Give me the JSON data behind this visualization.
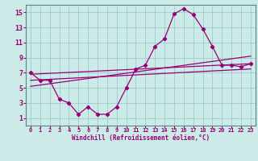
{
  "xlabel": "Windchill (Refroidissement éolien,°C)",
  "bg_color": "#cceae7",
  "line_color": "#990077",
  "grid_color": "#99cccc",
  "xlim": [
    -0.5,
    23.5
  ],
  "ylim": [
    0,
    16
  ],
  "xticks": [
    0,
    1,
    2,
    3,
    4,
    5,
    6,
    7,
    8,
    9,
    10,
    11,
    12,
    13,
    14,
    15,
    16,
    17,
    18,
    19,
    20,
    21,
    22,
    23
  ],
  "yticks": [
    1,
    3,
    5,
    7,
    9,
    11,
    13,
    15
  ],
  "series1_x": [
    0,
    1,
    2,
    3,
    4,
    5,
    6,
    7,
    8,
    9,
    10,
    11,
    12,
    13,
    14,
    15,
    16,
    17,
    18,
    19,
    20,
    21,
    22,
    23
  ],
  "series1_y": [
    7.0,
    6.0,
    6.0,
    3.5,
    3.0,
    1.5,
    2.5,
    1.5,
    1.5,
    2.5,
    5.0,
    7.5,
    8.0,
    10.5,
    11.5,
    14.8,
    15.5,
    14.7,
    12.8,
    10.5,
    8.0,
    8.0,
    7.8,
    8.2
  ],
  "line1_x": [
    0,
    23
  ],
  "line1_y": [
    6.8,
    8.2
  ],
  "line2_x": [
    0,
    23
  ],
  "line2_y": [
    5.2,
    9.2
  ],
  "line3_x": [
    0,
    23
  ],
  "line3_y": [
    6.0,
    7.5
  ]
}
